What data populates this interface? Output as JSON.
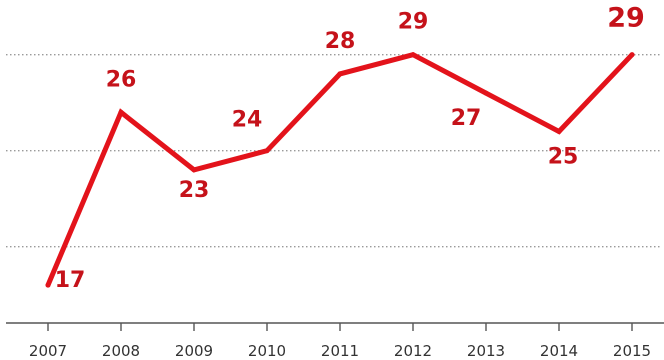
{
  "chart_data": {
    "type": "line",
    "title": "",
    "xlabel": "",
    "ylabel": "",
    "categories": [
      "2007",
      "2008",
      "2009",
      "2010",
      "2011",
      "2012",
      "2013",
      "2014",
      "2015"
    ],
    "series": [
      {
        "values": [
          17,
          26,
          23,
          24,
          28,
          29,
          27,
          25,
          29
        ]
      }
    ],
    "data_labels": [
      "17",
      "26",
      "23",
      "24",
      "28",
      "29",
      "27",
      "25",
      "29"
    ],
    "ylim": [
      15,
      31
    ],
    "gridlines_y": [
      19,
      24,
      29
    ],
    "grid": true,
    "legend": "none",
    "colors": {
      "line": "#e3131b",
      "label": "#c5121a",
      "grid": "#9a9a9a",
      "axis": "#555555",
      "tick_label": "#333333"
    }
  }
}
